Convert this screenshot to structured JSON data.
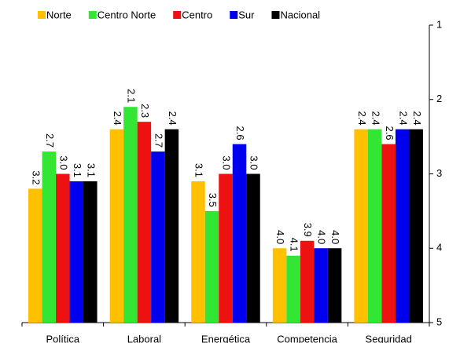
{
  "chart_data": {
    "type": "bar",
    "categories": [
      "Política",
      "Laboral",
      "Energética",
      "Competencia",
      "Seguridad"
    ],
    "series": [
      {
        "name": "Norte",
        "color": "#ffc000",
        "values": [
          3.2,
          2.4,
          3.1,
          4.0,
          2.4
        ],
        "value_labels": [
          "3.2",
          "2.4",
          "3.1",
          "4.0",
          "2.4"
        ]
      },
      {
        "name": "Centro Norte",
        "color": "#33e633",
        "values": [
          2.7,
          2.1,
          3.5,
          4.1,
          2.4
        ],
        "value_labels": [
          "2.7",
          "2.1",
          "3.5",
          "4.1",
          "2.4"
        ]
      },
      {
        "name": "Centro",
        "color": "#ee1111",
        "values": [
          3.0,
          2.3,
          3.0,
          3.9,
          2.6
        ],
        "value_labels": [
          "3.0",
          "2.3",
          "3.0",
          "3.9",
          "2.6"
        ]
      },
      {
        "name": "Sur",
        "color": "#0000ee",
        "values": [
          3.1,
          2.7,
          2.6,
          4.0,
          2.4
        ],
        "value_labels": [
          "3.1",
          "2.7",
          "2.6",
          "4.0",
          "2.4"
        ]
      },
      {
        "name": "Nacional",
        "color": "#000000",
        "values": [
          3.1,
          2.4,
          3.0,
          4.0,
          2.4
        ],
        "value_labels": [
          "3.1",
          "2.4",
          "3.0",
          "4.0",
          "2.4"
        ]
      }
    ],
    "ylim": [
      5,
      1
    ],
    "yticks": [
      1,
      2,
      3,
      4,
      5
    ]
  }
}
